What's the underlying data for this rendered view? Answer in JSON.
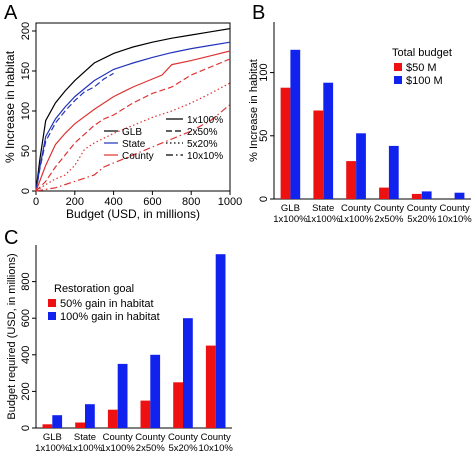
{
  "panels": {
    "a": "A",
    "b": "B",
    "c": "C"
  },
  "chart_data": [
    {
      "panel": "A",
      "type": "line",
      "xlabel": "Budget (USD, in millions)",
      "ylabel": "% Increase in habitat",
      "xlim": [
        0,
        1000
      ],
      "ylim": [
        0,
        210
      ],
      "x_ticks": [
        0,
        200,
        400,
        600,
        800,
        1000
      ],
      "y_ticks": [
        0,
        50,
        100,
        150,
        200
      ],
      "grid": false,
      "legend_color": [
        {
          "label": "GLB",
          "color": "#000000"
        },
        {
          "label": "State",
          "color": "#2233bb"
        },
        {
          "label": "County",
          "color": "#dd3333"
        }
      ],
      "legend_style": [
        {
          "label": "1x100%",
          "dash": "solid"
        },
        {
          "label": "2x50%",
          "dash": "dashed"
        },
        {
          "label": "5x20%",
          "dash": "dotted"
        },
        {
          "label": "10x10%",
          "dash": "dashdot"
        }
      ],
      "series": [
        {
          "group": "GLB",
          "goal": "1x100%",
          "color": "#000000",
          "dash": "solid",
          "points": [
            [
              0,
              0
            ],
            [
              20,
              40
            ],
            [
              50,
              88
            ],
            [
              100,
              110
            ],
            [
              150,
              125
            ],
            [
              200,
              138
            ],
            [
              300,
              160
            ],
            [
              400,
              172
            ],
            [
              500,
              180
            ],
            [
              600,
              186
            ],
            [
              700,
              191
            ],
            [
              800,
              195
            ],
            [
              900,
              199
            ],
            [
              1000,
              203
            ]
          ]
        },
        {
          "group": "State",
          "goal": "1x100%",
          "color": "#2233bb",
          "dash": "solid",
          "points": [
            [
              0,
              0
            ],
            [
              20,
              30
            ],
            [
              50,
              68
            ],
            [
              100,
              90
            ],
            [
              150,
              105
            ],
            [
              200,
              118
            ],
            [
              300,
              138
            ],
            [
              400,
              152
            ],
            [
              500,
              160
            ],
            [
              600,
              167
            ],
            [
              700,
              173
            ],
            [
              800,
              178
            ],
            [
              900,
              182
            ],
            [
              1000,
              186
            ]
          ]
        },
        {
          "group": "State",
          "goal": "2x50%",
          "color": "#2233bb",
          "dash": "dashed",
          "points": [
            [
              0,
              0
            ],
            [
              20,
              28
            ],
            [
              50,
              62
            ],
            [
              100,
              85
            ],
            [
              150,
              100
            ],
            [
              200,
              113
            ],
            [
              250,
              124
            ],
            [
              300,
              130
            ],
            [
              350,
              140
            ],
            [
              400,
              147
            ]
          ]
        },
        {
          "group": "County",
          "goal": "1x100%",
          "color": "#dd3333",
          "dash": "solid",
          "points": [
            [
              0,
              0
            ],
            [
              50,
              32
            ],
            [
              100,
              58
            ],
            [
              150,
              72
            ],
            [
              200,
              84
            ],
            [
              300,
              102
            ],
            [
              400,
              118
            ],
            [
              500,
              130
            ],
            [
              600,
              140
            ],
            [
              650,
              145
            ],
            [
              700,
              158
            ],
            [
              800,
              163
            ],
            [
              900,
              169
            ],
            [
              1000,
              175
            ]
          ]
        },
        {
          "group": "County",
          "goal": "2x50%",
          "color": "#dd3333",
          "dash": "dashed",
          "points": [
            [
              0,
              0
            ],
            [
              50,
              12
            ],
            [
              100,
              30
            ],
            [
              150,
              45
            ],
            [
              200,
              60
            ],
            [
              300,
              82
            ],
            [
              350,
              90
            ],
            [
              400,
              95
            ],
            [
              500,
              110
            ],
            [
              600,
              122
            ],
            [
              700,
              130
            ],
            [
              800,
              145
            ],
            [
              900,
              155
            ],
            [
              1000,
              165
            ]
          ]
        },
        {
          "group": "County",
          "goal": "5x20%",
          "color": "#dd3333",
          "dash": "dotted",
          "points": [
            [
              0,
              0
            ],
            [
              50,
              8
            ],
            [
              100,
              15
            ],
            [
              150,
              20
            ],
            [
              200,
              32
            ],
            [
              250,
              52
            ],
            [
              300,
              60
            ],
            [
              350,
              66
            ],
            [
              400,
              72
            ],
            [
              500,
              82
            ],
            [
              600,
              92
            ],
            [
              700,
              100
            ],
            [
              800,
              110
            ],
            [
              900,
              122
            ],
            [
              1000,
              135
            ]
          ]
        },
        {
          "group": "County",
          "goal": "10x10%",
          "color": "#dd3333",
          "dash": "dashdot",
          "points": [
            [
              0,
              0
            ],
            [
              100,
              4
            ],
            [
              200,
              12
            ],
            [
              300,
              20
            ],
            [
              350,
              30
            ],
            [
              400,
              35
            ],
            [
              500,
              45
            ],
            [
              600,
              55
            ],
            [
              700,
              65
            ],
            [
              800,
              75
            ],
            [
              900,
              88
            ],
            [
              1000,
              108
            ]
          ]
        }
      ]
    },
    {
      "panel": "B",
      "type": "bar",
      "ylabel": "% Increase in habitat",
      "ylim": [
        0,
        140
      ],
      "y_ticks": [
        0,
        50,
        100
      ],
      "categories": [
        "GLB\n1x100%",
        "State\n1x100%",
        "County\n1x100%",
        "County\n2x50%",
        "County\n5x20%",
        "County\n10x10%"
      ],
      "legend_title": "Total budget",
      "legend_position": "top-right",
      "series": [
        {
          "name": "$50 M",
          "color": "#ee1111",
          "values": [
            88,
            70,
            30,
            9,
            4,
            0
          ]
        },
        {
          "name": "$100 M",
          "color": "#1122ee",
          "values": [
            118,
            92,
            52,
            42,
            6,
            5
          ]
        }
      ]
    },
    {
      "panel": "C",
      "type": "bar",
      "ylabel": "Budget required (USD, in millions)",
      "ylim": [
        0,
        1000
      ],
      "y_ticks": [
        0,
        200,
        400,
        600,
        800
      ],
      "categories": [
        "GLB\n1x100%",
        "State\n1x100%",
        "County\n1x100%",
        "County\n2x50%",
        "County\n5x20%",
        "County\n10x10%"
      ],
      "legend_title": "Restoration goal",
      "legend_position": "top-left",
      "series": [
        {
          "name": "50% gain in habitat",
          "color": "#ee1111",
          "values": [
            20,
            30,
            100,
            150,
            250,
            450
          ]
        },
        {
          "name": "100% gain in habitat",
          "color": "#1122ee",
          "values": [
            70,
            130,
            350,
            400,
            600,
            950
          ]
        }
      ]
    }
  ]
}
